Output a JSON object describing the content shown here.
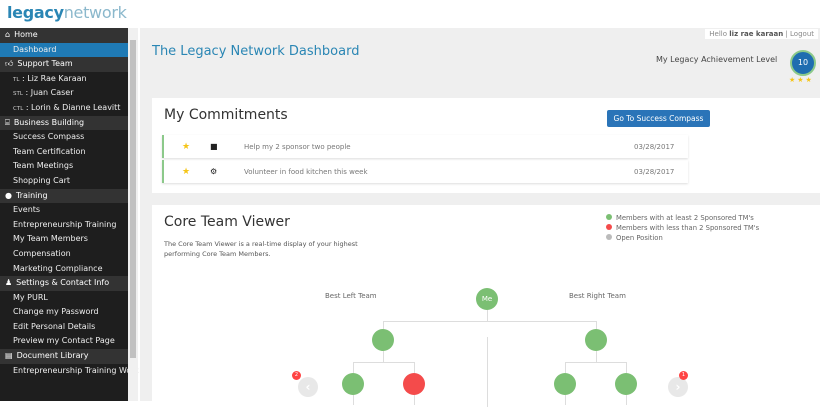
{
  "logo": {
    "bold": "legacy",
    "light": "network"
  },
  "sidebar": {
    "sections": [
      {
        "label": "Home",
        "icon": "home-icon",
        "items": [
          {
            "label": "Dashboard",
            "active": true
          }
        ]
      },
      {
        "label": "Support Team",
        "icon": "thumbs-up-icon",
        "items": [
          {
            "prefix": "TL",
            "label": ": Liz Rae Karaan"
          },
          {
            "prefix": "STL",
            "label": ": Juan Caser"
          },
          {
            "prefix": "CTL",
            "label": ": Lorin & Dianne Leavitt"
          }
        ]
      },
      {
        "label": "Business Building",
        "icon": "bank-icon",
        "items": [
          {
            "label": "Success Compass"
          },
          {
            "label": "Team Certification"
          },
          {
            "label": "Team Meetings"
          },
          {
            "label": "Shopping Cart"
          }
        ]
      },
      {
        "label": "Training",
        "icon": "circle-icon",
        "items": [
          {
            "label": "Events"
          },
          {
            "label": "Entrepreneurship Training"
          },
          {
            "label": "My Team Members"
          },
          {
            "label": "Compensation"
          },
          {
            "label": "Marketing Compliance"
          }
        ]
      },
      {
        "label": "Settings & Contact Info",
        "icon": "user-icon",
        "items": [
          {
            "label": "My PURL"
          },
          {
            "label": "Change my Password"
          },
          {
            "label": "Edit Personal Details"
          },
          {
            "label": "Preview my Contact Page"
          }
        ]
      },
      {
        "label": "Document Library",
        "icon": "book-icon",
        "items": [
          {
            "label": "Entrepreneurship Training Workbook"
          }
        ]
      }
    ]
  },
  "header": {
    "hello": "Hello",
    "user": "liz rae karaan",
    "sep": "|",
    "logout": "Logout",
    "title": "The Legacy Network Dashboard",
    "achievement_label": "My Legacy Achievement Level",
    "level": "10",
    "stars": "★★★"
  },
  "commitments": {
    "title": "My Commitments",
    "button": "Go To Success Compass",
    "rows": [
      {
        "icon": "briefcase-icon",
        "glyph": "■",
        "text": "Help my 2 sponsor two people",
        "date": "03/28/2017"
      },
      {
        "icon": "gear-icon",
        "glyph": "⚙",
        "text": "Volunteer in food kitchen this week",
        "date": "03/28/2017"
      }
    ]
  },
  "core_team": {
    "title": "Core Team Viewer",
    "description": "The Core Team Viewer is a real-time display of your highest performing Core Team Members.",
    "legend": [
      {
        "label": "Members with at least 2 Sponsored TM's",
        "color": "#7bbf73"
      },
      {
        "label": "Members with less than 2 Sponsored TM's",
        "color": "#f44b4b"
      },
      {
        "label": "Open Position",
        "color": "#bbbbbb"
      }
    ],
    "best_left": "Best Left Team",
    "best_right": "Best Right Team",
    "me": "Me",
    "left_badge": "2",
    "right_badge": "1",
    "colors": {
      "green": "#7bbf73",
      "red": "#f44b4b"
    }
  }
}
